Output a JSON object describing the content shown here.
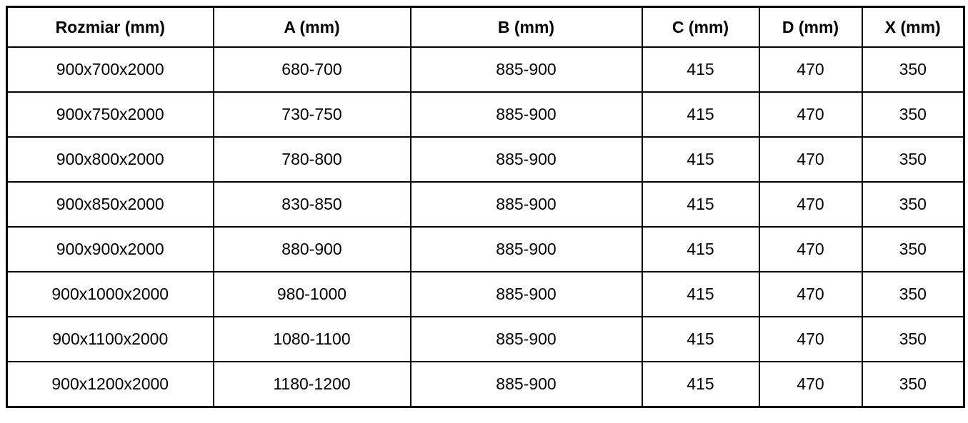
{
  "table": {
    "columns": [
      "Rozmiar (mm)",
      "A (mm)",
      "B (mm)",
      "C (mm)",
      "D (mm)",
      "X (mm)"
    ],
    "column_keys": [
      "rozmiar",
      "a",
      "b",
      "c",
      "d",
      "x"
    ],
    "rows": [
      [
        "900x700x2000",
        "680-700",
        "885-900",
        "415",
        "470",
        "350"
      ],
      [
        "900x750x2000",
        "730-750",
        "885-900",
        "415",
        "470",
        "350"
      ],
      [
        "900x800x2000",
        "780-800",
        "885-900",
        "415",
        "470",
        "350"
      ],
      [
        "900x850x2000",
        "830-850",
        "885-900",
        "415",
        "470",
        "350"
      ],
      [
        "900x900x2000",
        "880-900",
        "885-900",
        "415",
        "470",
        "350"
      ],
      [
        "900x1000x2000",
        "980-1000",
        "885-900",
        "415",
        "470",
        "350"
      ],
      [
        "900x1100x2000",
        "1080-1100",
        "885-900",
        "415",
        "470",
        "350"
      ],
      [
        "900x1200x2000",
        "1180-1200",
        "885-900",
        "415",
        "470",
        "350"
      ]
    ]
  },
  "colors": {
    "border": "#000000",
    "background": "#ffffff",
    "text": "#000000"
  }
}
